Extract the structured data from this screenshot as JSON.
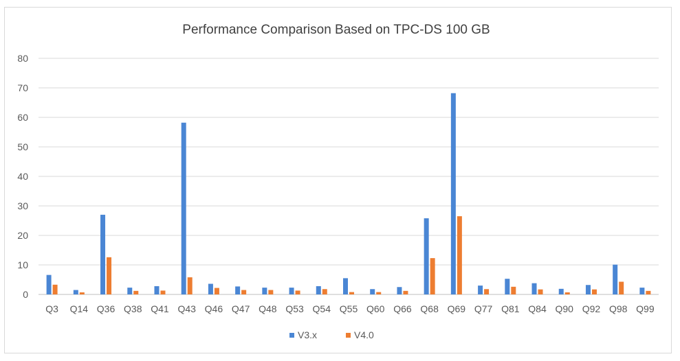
{
  "chart_data": {
    "type": "bar",
    "title": "Performance Comparison Based on TPC-DS 100 GB",
    "xlabel": "",
    "ylabel": "",
    "ylim": [
      0,
      80
    ],
    "yticks": [
      0,
      10,
      20,
      30,
      40,
      50,
      60,
      70,
      80
    ],
    "grid": true,
    "legend_position": "bottom",
    "categories": [
      "Q3",
      "Q14",
      "Q36",
      "Q38",
      "Q41",
      "Q43",
      "Q46",
      "Q47",
      "Q48",
      "Q53",
      "Q54",
      "Q55",
      "Q60",
      "Q66",
      "Q68",
      "Q69",
      "Q77",
      "Q81",
      "Q84",
      "Q90",
      "Q92",
      "Q98",
      "Q99"
    ],
    "series": [
      {
        "name": "V3.x",
        "color": "#4a86d4",
        "values": [
          6.6,
          1.5,
          27.0,
          2.3,
          2.8,
          58.2,
          3.6,
          2.7,
          2.3,
          2.3,
          2.8,
          5.5,
          1.8,
          2.5,
          25.8,
          68.2,
          3.0,
          5.3,
          3.8,
          1.9,
          3.2,
          10.1,
          2.3
        ]
      },
      {
        "name": "V4.0",
        "color": "#ed7d31",
        "values": [
          3.3,
          0.7,
          12.6,
          1.2,
          1.3,
          5.8,
          2.2,
          1.5,
          1.5,
          1.3,
          1.8,
          0.8,
          0.8,
          1.2,
          12.3,
          26.5,
          1.8,
          2.6,
          1.7,
          0.7,
          1.7,
          4.3,
          1.2
        ]
      }
    ]
  }
}
